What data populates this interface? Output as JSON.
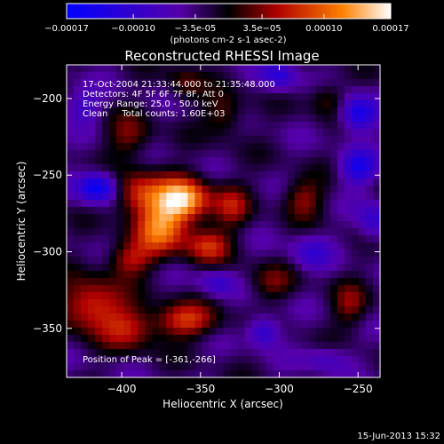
{
  "chart_data": {
    "type": "heatmap",
    "title": "Reconstructed RHESSI Image",
    "xlabel": "Heliocentric X (arcsec)",
    "ylabel": "Heliocentric Y (arcsec)",
    "xlim": [
      -435,
      -236
    ],
    "ylim": [
      -382,
      -178
    ],
    "xticks": [
      -400,
      -350,
      -300,
      -250
    ],
    "yticks": [
      -350,
      -300,
      -250,
      -200
    ],
    "colorbar": {
      "range": [
        -0.00017,
        0.00017
      ],
      "ticks": [
        {
          "value": -0.00017,
          "label": "-0.00017"
        },
        {
          "value": -0.0001,
          "label": "-0.00010"
        },
        {
          "value": -3.5e-05,
          "label": "-3.5e-05"
        },
        {
          "value": 3.5e-05,
          "label": "3.5e-05"
        },
        {
          "value": 0.0001,
          "label": "0.00010"
        },
        {
          "value": 0.00017,
          "label": "0.00017"
        }
      ],
      "unit_label": "(photons cm-2 s-1 asec-2)"
    },
    "info_lines": [
      "17-Oct-2004 21:33:44.000 to 21:35:48.000",
      "Detectors: 4F 5F 6F 7F 8F, Att 0",
      "Energy Range: 25.0 - 50.0 keV",
      "Clean     Total counts: 1.60E+03"
    ],
    "peak_text": "Position of Peak = [-361,-266]",
    "peak": {
      "x": -361,
      "y": -266
    },
    "sources": [
      {
        "x": -361,
        "y": -266,
        "amp": 0.00017,
        "sx": 12,
        "sy": 10
      },
      {
        "x": -375,
        "y": -285,
        "amp": 0.00013,
        "sx": 12,
        "sy": 12
      },
      {
        "x": -390,
        "y": -262,
        "amp": 0.0001,
        "sx": 12,
        "sy": 10
      },
      {
        "x": -345,
        "y": -296,
        "amp": 9e-05,
        "sx": 10,
        "sy": 8
      },
      {
        "x": -395,
        "y": -305,
        "amp": 8e-05,
        "sx": 10,
        "sy": 8
      },
      {
        "x": -420,
        "y": -335,
        "amp": 0.00011,
        "sx": 14,
        "sy": 12
      },
      {
        "x": -360,
        "y": -345,
        "amp": 0.0001,
        "sx": 14,
        "sy": 8
      },
      {
        "x": -395,
        "y": -350,
        "amp": 8e-05,
        "sx": 12,
        "sy": 10
      },
      {
        "x": -330,
        "y": -270,
        "amp": 7e-05,
        "sx": 8,
        "sy": 10
      },
      {
        "x": -335,
        "y": -210,
        "amp": 6e-05,
        "sx": 9,
        "sy": 10
      },
      {
        "x": -395,
        "y": -225,
        "amp": 6e-05,
        "sx": 10,
        "sy": 10
      },
      {
        "x": -285,
        "y": -265,
        "amp": 7e-05,
        "sx": 9,
        "sy": 9
      },
      {
        "x": -255,
        "y": -335,
        "amp": 6e-05,
        "sx": 8,
        "sy": 10
      },
      {
        "x": -270,
        "y": -200,
        "amp": 5e-05,
        "sx": 8,
        "sy": 8
      },
      {
        "x": -305,
        "y": -320,
        "amp": 5e-05,
        "sx": 10,
        "sy": 8
      },
      {
        "x": -360,
        "y": -190,
        "amp": 5e-05,
        "sx": 8,
        "sy": 8
      },
      {
        "x": -415,
        "y": -258,
        "amp": -0.00014,
        "sx": 9,
        "sy": 7
      },
      {
        "x": -250,
        "y": -210,
        "amp": -0.00012,
        "sx": 8,
        "sy": 8
      },
      {
        "x": -250,
        "y": -245,
        "amp": -0.0001,
        "sx": 8,
        "sy": 8
      },
      {
        "x": -300,
        "y": -185,
        "amp": -8e-05,
        "sx": 8,
        "sy": 7
      },
      {
        "x": -310,
        "y": -352,
        "amp": -9e-05,
        "sx": 7,
        "sy": 7
      },
      {
        "x": -280,
        "y": -300,
        "amp": -6e-05,
        "sx": 9,
        "sy": 8
      },
      {
        "x": -340,
        "y": -320,
        "amp": -6e-05,
        "sx": 8,
        "sy": 6
      },
      {
        "x": -425,
        "y": -205,
        "amp": -6e-05,
        "sx": 8,
        "sy": 8
      },
      {
        "x": -240,
        "y": -280,
        "amp": -7e-05,
        "sx": 7,
        "sy": 9
      },
      {
        "x": -270,
        "y": -370,
        "amp": -5e-05,
        "sx": 10,
        "sy": 6
      }
    ]
  },
  "footer": {
    "timestamp": "15-Jun-2013 15:32"
  }
}
